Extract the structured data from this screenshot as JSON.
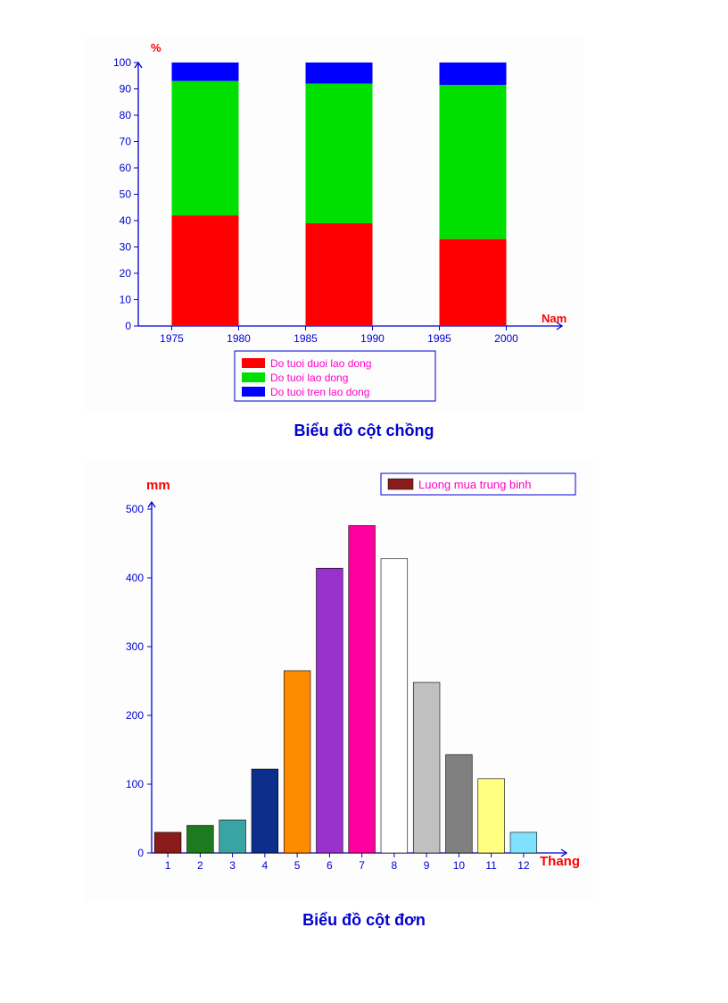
{
  "chart1": {
    "type": "stacked-bar",
    "title": "Biểu đồ cột chồng",
    "ylabel": "%",
    "xlabel": "Nam",
    "ylim": [
      0,
      100
    ],
    "ytick_step": 10,
    "background_color": "#fdfdfe",
    "axis_color": "#0000d0",
    "tick_color": "#0000d0",
    "yaxis_label_color": "#ff0000",
    "xaxis_label_color": "#ff0000",
    "xtick_label_color": "#0000d0",
    "ytick_label_color": "#0000d0",
    "xticks": [
      "1975",
      "1980",
      "1985",
      "1990",
      "1995",
      "2000"
    ],
    "groups": [
      {
        "span": [
          0,
          1
        ],
        "red": 42,
        "green": 51,
        "blue": 7
      },
      {
        "span": [
          2,
          3
        ],
        "red": 39,
        "green": 53,
        "blue": 8
      },
      {
        "span": [
          4,
          5
        ],
        "red": 33,
        "green": 58.5,
        "blue": 8.5
      }
    ],
    "legend": {
      "border_color": "#0000d0",
      "text_color": "#ff00c8",
      "items": [
        {
          "label": "Do tuoi duoi lao dong",
          "color": "#ff0000"
        },
        {
          "label": "Do tuoi lao dong",
          "color": "#00e000"
        },
        {
          "label": "Do tuoi tren lao dong",
          "color": "#0000ff"
        }
      ]
    },
    "colors": {
      "red": "#ff0000",
      "green": "#00e000",
      "blue": "#0000ff"
    },
    "tick_fontsize": 12,
    "label_fontsize": 13,
    "title_fontsize": 18
  },
  "chart2": {
    "type": "bar",
    "title": "Biểu đồ cột đơn",
    "ylabel": "mm",
    "xlabel": "Thang",
    "ylim": [
      0,
      500
    ],
    "ytick_step": 100,
    "background_color": "#fdfdfe",
    "axis_color": "#0000d0",
    "tick_color": "#0000d0",
    "yaxis_label_color": "#ff0000",
    "xaxis_label_color": "#ff0000",
    "xtick_label_color": "#0000d0",
    "ytick_label_color": "#0000d0",
    "categories": [
      "1",
      "2",
      "3",
      "4",
      "5",
      "6",
      "7",
      "8",
      "9",
      "10",
      "11",
      "12"
    ],
    "values": [
      30,
      40,
      48,
      122,
      265,
      414,
      476,
      428,
      248,
      143,
      108,
      30
    ],
    "bar_colors": [
      "#8b1a1a",
      "#1e7a1e",
      "#3aa3a3",
      "#0b2f8b",
      "#ff8c00",
      "#9932cc",
      "#ff00a0",
      "#ffffff",
      "#c0c0c0",
      "#808080",
      "#ffff80",
      "#80e0ff"
    ],
    "bar_border": "#000000",
    "bar_width": 0.82,
    "legend": {
      "border_color": "#0000d0",
      "text_color": "#ff00c8",
      "swatch_color": "#8b1a1a",
      "label": "Luong mua trung binh"
    },
    "tick_fontsize": 12,
    "label_fontsize": 15,
    "title_fontsize": 18
  }
}
